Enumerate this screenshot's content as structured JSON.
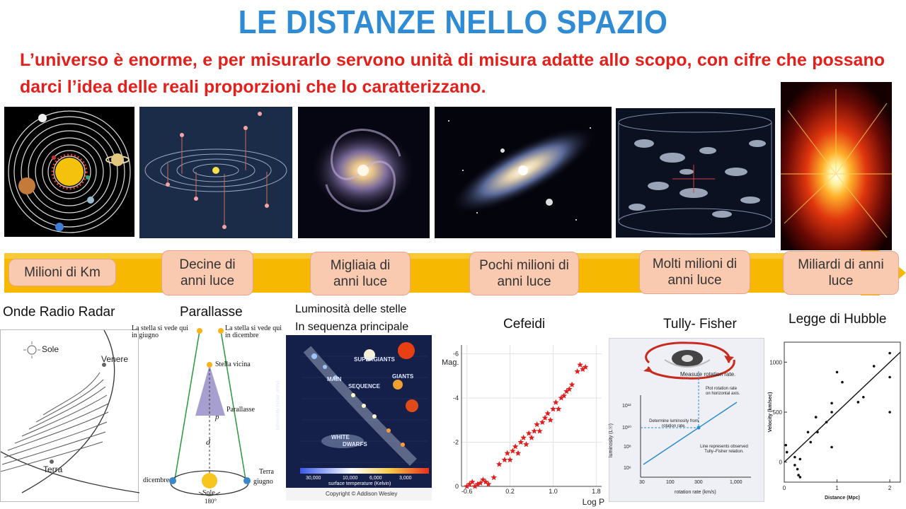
{
  "header": {
    "title": "LE DISTANZE NELLO SPAZIO",
    "subtitle": "L’universo è enorme, e per misurarlo servono unità di misura adatte allo scopo, con cifre che possano darci l’idea delle reali proporzioni che lo caratterizzano."
  },
  "scale_labels": [
    "Milioni di Km",
    "Decine di anni luce",
    "Migliaia di anni luce",
    "Pochi milioni di anni luce",
    "Molti milioni di anni luce",
    "Miliardi di anni luce"
  ],
  "methods": {
    "radar": "Onde Radio Radar",
    "parallax": "Parallasse",
    "luminosity_1": "Luminosità delle stelle",
    "luminosity_2": "In sequenza principale",
    "cepheid": "Cefeidi",
    "tully": "Tully- Fisher",
    "hubble": "Legge di Hubble"
  },
  "radar_fig": {
    "sun": "Sole",
    "venus": "Venere",
    "earth": "Terra"
  },
  "parallax_fig": {
    "june_star": "La stella si vede qui in giugno",
    "december_star": "La stella si vede qui in dicembre",
    "near_star": "Stella vicina",
    "parallax": "Parallasse",
    "p": "p",
    "d": "d",
    "december": "dicembre",
    "june": "giugno",
    "earth": "Terra",
    "sun": "Sole",
    "angle": "180°"
  },
  "hr_fig": {
    "supergiants": "SUPERGIANTS",
    "main": "MAIN",
    "sequence": "SEQUENCE",
    "giants": "GIANTS",
    "white": "WHITE",
    "dwarfs": "DWARFS",
    "xlabel": "surface temperature (Kelvin)",
    "ylabel": "luminosity (solar units)",
    "t1": "30,000",
    "t2": "10,000",
    "t3": "6,000",
    "t4": "3,000",
    "copyright": "Copyright © Addison Wesley"
  },
  "cepheid_fig": {
    "ylabel": "Mag.",
    "xlabel": "Log P",
    "xticks": [
      "-0.6",
      "0.2",
      "1.0",
      "1.8"
    ],
    "yticks": [
      "-6",
      "-4",
      "-2",
      "0"
    ]
  },
  "tully_fig": {
    "measure": "Measure rotation rate.",
    "plot": "Plot rotation rate on horizontal axis.",
    "determine": "Determine luminosity from rotation rate.",
    "line": "Line represents observed Tully–Fisher relation.",
    "xlabel": "rotation rate (km/s)",
    "ylabel": "luminosity (L☉)",
    "xticks": [
      "30",
      "100",
      "300",
      "1,000"
    ],
    "yticks": [
      "10¹²",
      "10¹⁰",
      "10⁸",
      "10⁶"
    ]
  },
  "hubble_fig": {
    "ylabel": "Velocity (km/sec)",
    "xlabel": "Distance (Mpc)",
    "xticks": [
      "0",
      "1",
      "2"
    ],
    "yticks": [
      "0",
      "500",
      "1000"
    ]
  },
  "chart_data": [
    {
      "type": "scatter",
      "title": "Cefeidi",
      "xlabel": "Log P",
      "ylabel": "Mag.",
      "xlim": [
        -0.7,
        1.9
      ],
      "ylim": [
        0,
        -6.4
      ],
      "x": [
        -0.6,
        -0.55,
        -0.5,
        -0.45,
        -0.4,
        -0.35,
        -0.3,
        -0.25,
        -0.2,
        -0.1,
        0.0,
        0.1,
        0.15,
        0.2,
        0.25,
        0.3,
        0.35,
        0.4,
        0.45,
        0.5,
        0.55,
        0.6,
        0.65,
        0.7,
        0.75,
        0.8,
        0.85,
        0.9,
        0.95,
        1.0,
        1.05,
        1.1,
        1.15,
        1.2,
        1.25,
        1.3,
        1.35,
        1.45,
        1.5,
        1.55,
        1.6
      ],
      "y": [
        0,
        -0.1,
        -0.2,
        0,
        -0.1,
        -0.15,
        -0.3,
        -0.2,
        -0.1,
        -0.4,
        -1.0,
        -1.2,
        -1.5,
        -1.2,
        -1.6,
        -1.8,
        -1.5,
        -2.0,
        -2.2,
        -1.9,
        -2.4,
        -2.2,
        -2.5,
        -2.8,
        -2.5,
        -2.9,
        -3.1,
        -3.3,
        -3.0,
        -3.5,
        -3.8,
        -3.5,
        -4.0,
        -4.1,
        -4.3,
        -4.4,
        -4.6,
        -5.2,
        -5.5,
        -5.3,
        -5.4
      ]
    },
    {
      "type": "scatter",
      "title": "Legge di Hubble",
      "xlabel": "Distance (Mpc)",
      "ylabel": "Velocity (km/sec)",
      "xlim": [
        0,
        2.2
      ],
      "ylim": [
        -200,
        1200
      ],
      "x": [
        0.03,
        0.05,
        0.2,
        0.25,
        0.27,
        0.3,
        0.45,
        0.5,
        0.63,
        0.8,
        0.9,
        0.9,
        1.0,
        1.1,
        1.4,
        1.7,
        2.0,
        2.0,
        2.0,
        0.2,
        0.3,
        0.9,
        0.6,
        1.5
      ],
      "y": [
        170,
        100,
        50,
        -70,
        -130,
        -150,
        300,
        200,
        300,
        400,
        150,
        500,
        900,
        800,
        600,
        960,
        500,
        850,
        1090,
        -30,
        30,
        590,
        450,
        650
      ],
      "trendline": {
        "x": [
          0,
          2.2
        ],
        "y": [
          0,
          1100
        ]
      }
    }
  ]
}
